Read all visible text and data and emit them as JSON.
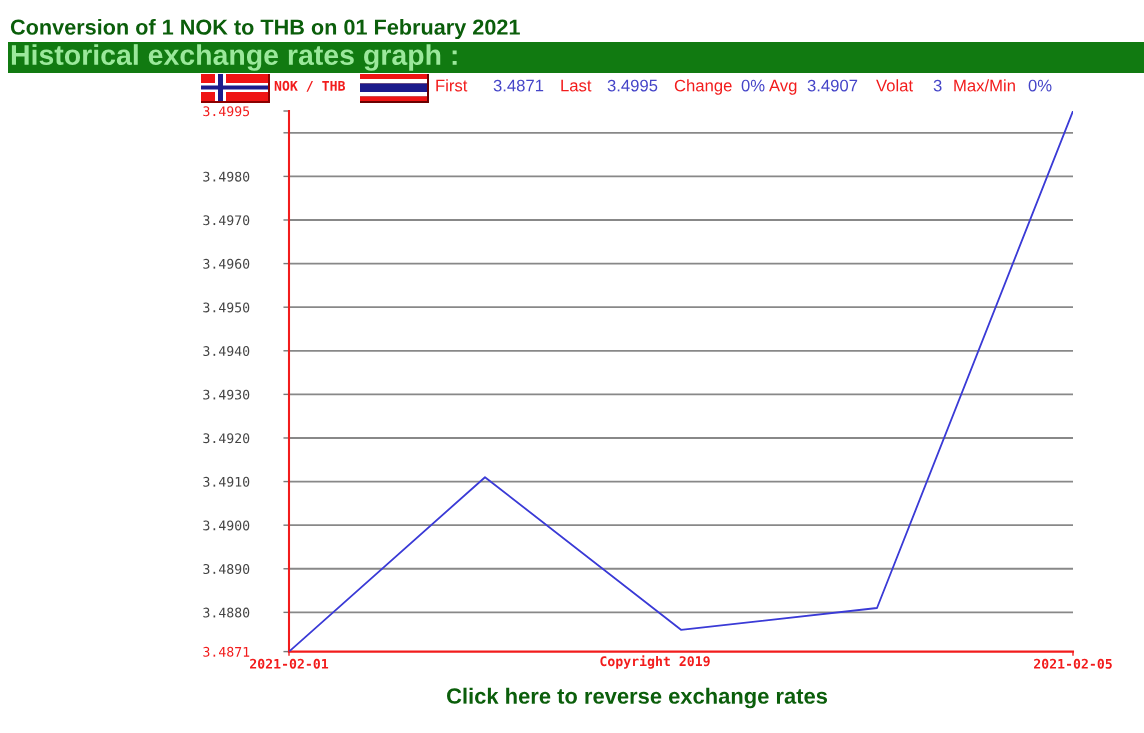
{
  "chart_data": {
    "type": "line",
    "title": "Conversion of 1 NOK to THB on 01 February 2021",
    "subtitle": "Historical exchange rates graph :",
    "x": [
      "2021-02-01",
      "2021-02-02",
      "2021-02-03",
      "2021-02-04",
      "2021-02-05"
    ],
    "series": [
      {
        "color": "#3a3ad6",
        "values": [
          3.4871,
          3.4911,
          3.4876,
          3.4881,
          3.4995
        ]
      }
    ],
    "line_style": "solid",
    "xlim": [
      "2021-02-01",
      "2021-02-05"
    ],
    "xticks": [
      "2021-02-01",
      "2021-02-05"
    ],
    "ylim": [
      3.4871,
      3.4995
    ],
    "yticks": [
      3.4871,
      {
        "value": 3.488,
        "label": "3.4880"
      },
      {
        "value": 3.489,
        "label": "3.4890"
      },
      {
        "value": 3.49,
        "label": "3.4900"
      },
      {
        "value": 3.491,
        "label": "3.4910"
      },
      {
        "value": 3.492,
        "label": "3.4920"
      },
      {
        "value": 3.493,
        "label": "3.4930"
      },
      {
        "value": 3.494,
        "label": "3.4940"
      },
      {
        "value": 3.495,
        "label": "3.4950"
      },
      {
        "value": 3.496,
        "label": "3.4960"
      },
      {
        "value": 3.497,
        "label": "3.4970"
      },
      {
        "value": 3.498,
        "label": "3.4980"
      },
      {
        "value": 3.499,
        "label": null
      },
      3.4995
    ],
    "grid": "y",
    "annotations": [
      "NOK / THB",
      "First",
      "3.4871",
      "Last",
      "3.4995",
      "Change",
      "0%",
      "Avg",
      "3.4907",
      "Volat",
      "3",
      "Max/Min",
      "0%",
      "Copyright 2019",
      "Click here to reverse exchange rates"
    ]
  }
}
